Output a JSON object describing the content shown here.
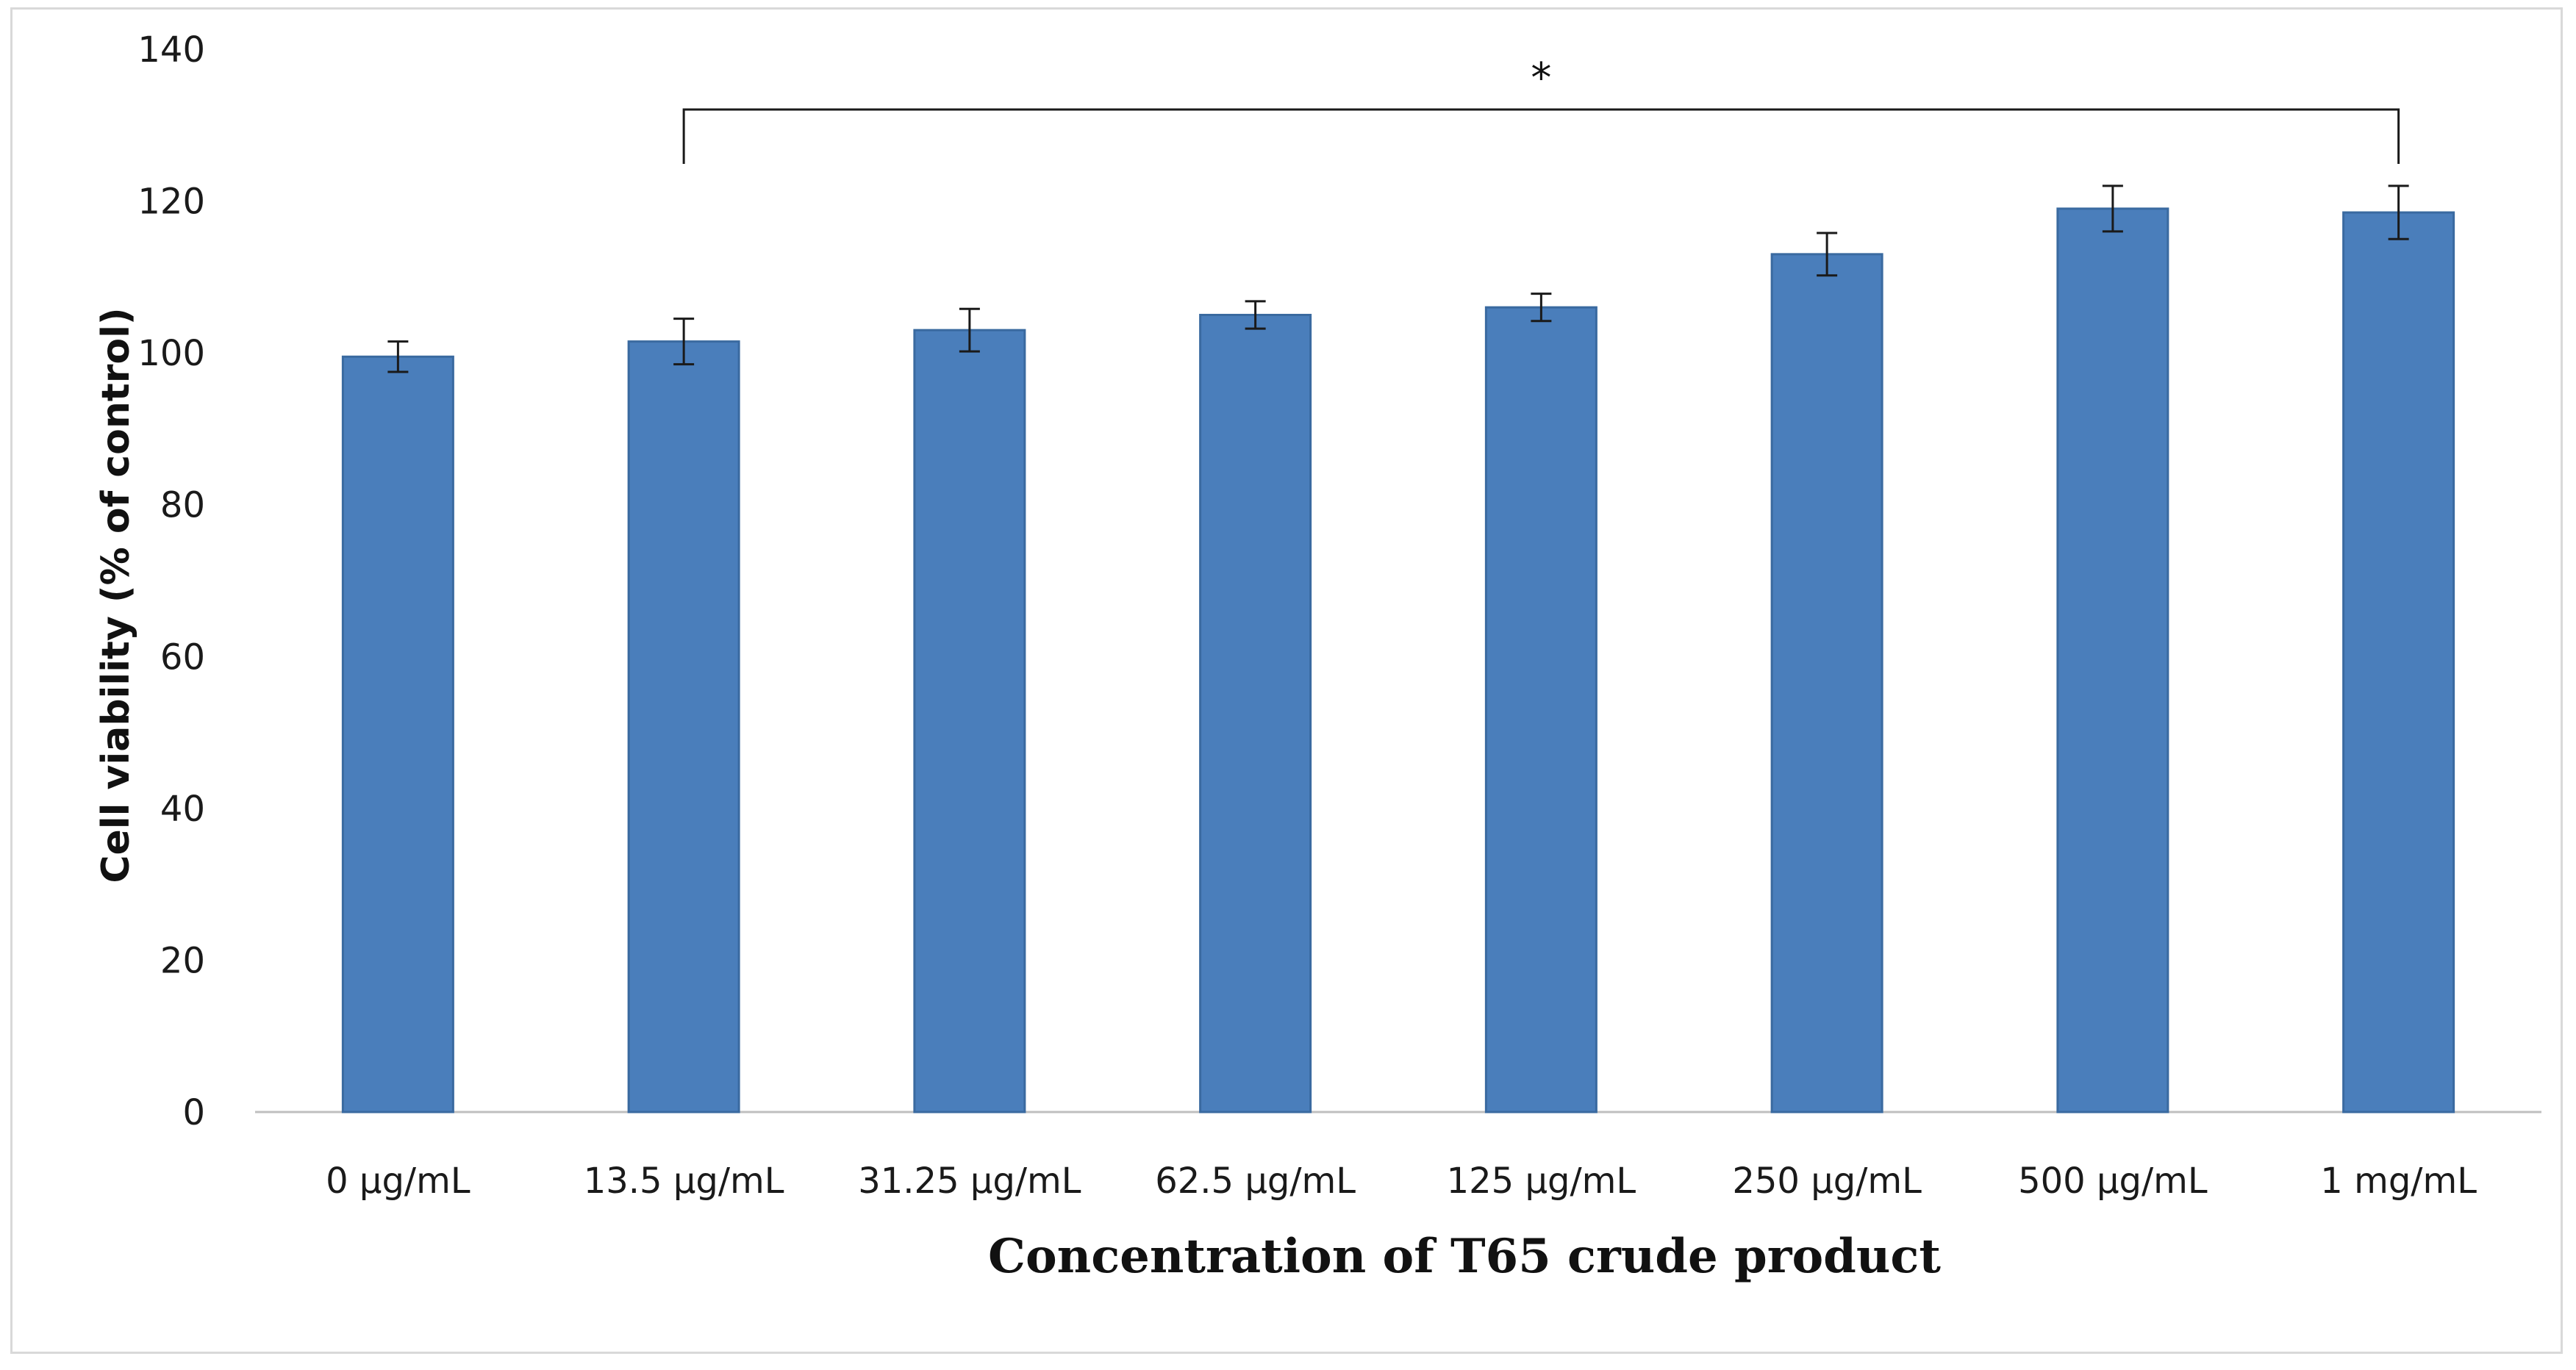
{
  "chart_data": {
    "type": "bar",
    "categories": [
      "0 µg/mL",
      "13.5 µg/mL",
      "31.25 µg/mL",
      "62.5 µg/mL",
      "125 µg/mL",
      "250 µg/mL",
      "500 µg/mL",
      "1 mg/mL"
    ],
    "values": [
      99.5,
      101.5,
      103,
      105,
      106,
      113,
      119,
      118.5
    ],
    "errors": [
      2,
      3,
      2.8,
      1.8,
      1.8,
      2.8,
      3,
      3.5
    ],
    "title": "",
    "xlabel": "Concentration of T65 crude product",
    "ylabel": "Cell viability (% of control)",
    "ylim": [
      0,
      140
    ],
    "yticks": [
      0,
      20,
      40,
      60,
      80,
      100,
      120,
      140
    ],
    "grid": false,
    "bar_color": "#4a7ebb",
    "bar_edge_color": "#3a6aa0",
    "significance": {
      "from": "13.5 µg/mL",
      "to": "1 mg/mL",
      "label": "*"
    }
  }
}
